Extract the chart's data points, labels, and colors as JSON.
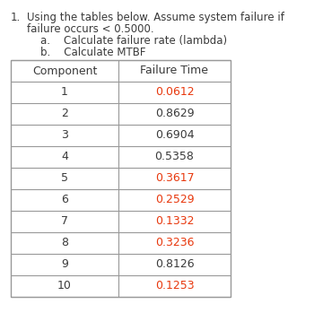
{
  "title_number": "1.",
  "title_line1": "Using the tables below. Assume system failure if",
  "title_line2": "failure occurs < 0.5000.",
  "sub_a": "a.    Calculate failure rate (lambda)",
  "sub_b": "b.    Calculate MTBF",
  "col_headers": [
    "Component",
    "Failure Time"
  ],
  "components": [
    "1",
    "2",
    "3",
    "4",
    "5",
    "6",
    "7",
    "8",
    "9",
    "10"
  ],
  "failure_times": [
    "0.0612",
    "0.8629",
    "0.6904",
    "0.5358",
    "0.3617",
    "0.2529",
    "0.1332",
    "0.3236",
    "0.8126",
    "0.1253"
  ],
  "failure_colors": [
    "#e8380d",
    "#3a3a3a",
    "#3a3a3a",
    "#3a3a3a",
    "#e8380d",
    "#e8380d",
    "#e8380d",
    "#e8380d",
    "#3a3a3a",
    "#e8380d"
  ],
  "text_color": "#3a3a3a",
  "bg_color": "#ffffff",
  "table_line_color": "#999999",
  "text_fontsize": 8.5,
  "table_fontsize": 9.0,
  "header_fontsize": 9.0
}
